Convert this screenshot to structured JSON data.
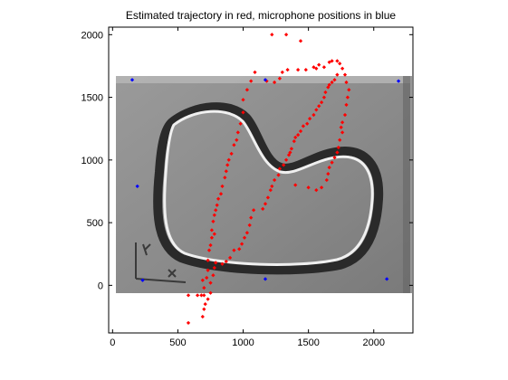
{
  "chart_data": {
    "type": "scatter",
    "title": "Estimated trajectory in red, microphone positions in blue",
    "xlabel": "",
    "ylabel": "",
    "xlim": [
      -30,
      2300
    ],
    "ylim": [
      2060,
      -380
    ],
    "y_reversed": true,
    "x_ticks": [
      0,
      500,
      1000,
      1500,
      2000
    ],
    "y_ticks": [
      0,
      500,
      1000,
      1500,
      2000
    ],
    "grid": false,
    "legend": "none",
    "colors": {
      "trajectory": "#ff0000",
      "microphones": "#0000ff"
    },
    "background_image": {
      "description": "grayscale photo of a track",
      "extent_x": [
        0,
        2300
      ],
      "extent_y": [
        40,
        1710
      ]
    },
    "series": [
      {
        "role": "trajectory",
        "color": "#ff0000",
        "points": [
          [
            580,
            -300
          ],
          [
            690,
            -250
          ],
          [
            700,
            -190
          ],
          [
            710,
            -150
          ],
          [
            730,
            -110
          ],
          [
            580,
            -80
          ],
          [
            650,
            -80
          ],
          [
            680,
            -80
          ],
          [
            700,
            -80
          ],
          [
            750,
            -60
          ],
          [
            700,
            -20
          ],
          [
            750,
            20
          ],
          [
            690,
            40
          ],
          [
            720,
            60
          ],
          [
            730,
            120
          ],
          [
            770,
            80
          ],
          [
            780,
            140
          ],
          [
            790,
            180
          ],
          [
            840,
            170
          ],
          [
            870,
            190
          ],
          [
            900,
            220
          ],
          [
            930,
            280
          ],
          [
            970,
            290
          ],
          [
            990,
            330
          ],
          [
            1010,
            380
          ],
          [
            1030,
            420
          ],
          [
            1050,
            480
          ],
          [
            1060,
            540
          ],
          [
            1080,
            600
          ],
          [
            1150,
            610
          ],
          [
            1170,
            650
          ],
          [
            1190,
            700
          ],
          [
            1210,
            760
          ],
          [
            1220,
            790
          ],
          [
            1240,
            840
          ],
          [
            1270,
            880
          ],
          [
            1280,
            930
          ],
          [
            1310,
            960
          ],
          [
            1330,
            1000
          ],
          [
            1350,
            1040
          ],
          [
            1360,
            1060
          ],
          [
            1370,
            1090
          ],
          [
            1390,
            1150
          ],
          [
            1400,
            1180
          ],
          [
            1420,
            1200
          ],
          [
            1440,
            1230
          ],
          [
            1460,
            1270
          ],
          [
            1490,
            1290
          ],
          [
            1510,
            1330
          ],
          [
            1540,
            1360
          ],
          [
            1560,
            1400
          ],
          [
            1580,
            1430
          ],
          [
            1600,
            1460
          ],
          [
            1620,
            1500
          ],
          [
            1630,
            1540
          ],
          [
            1650,
            1580
          ],
          [
            1660,
            1600
          ],
          [
            1680,
            1620
          ],
          [
            1700,
            1640
          ],
          [
            1720,
            1680
          ],
          [
            730,
            200
          ],
          [
            740,
            280
          ],
          [
            750,
            320
          ],
          [
            760,
            380
          ],
          [
            780,
            410
          ],
          [
            760,
            440
          ],
          [
            770,
            510
          ],
          [
            780,
            560
          ],
          [
            790,
            600
          ],
          [
            800,
            640
          ],
          [
            810,
            690
          ],
          [
            830,
            730
          ],
          [
            840,
            790
          ],
          [
            860,
            860
          ],
          [
            870,
            910
          ],
          [
            880,
            960
          ],
          [
            890,
            1000
          ],
          [
            910,
            1050
          ],
          [
            930,
            1120
          ],
          [
            950,
            1160
          ],
          [
            960,
            1220
          ],
          [
            980,
            1290
          ],
          [
            1000,
            1380
          ],
          [
            1000,
            1480
          ],
          [
            1030,
            1560
          ],
          [
            1060,
            1630
          ],
          [
            1090,
            1700
          ],
          [
            1180,
            1630
          ],
          [
            1240,
            1620
          ],
          [
            1280,
            1650
          ],
          [
            1300,
            1700
          ],
          [
            1340,
            1720
          ],
          [
            1420,
            1720
          ],
          [
            1480,
            1720
          ],
          [
            1540,
            1740
          ],
          [
            1560,
            1730
          ],
          [
            1580,
            1760
          ],
          [
            1620,
            1740
          ],
          [
            1660,
            1780
          ],
          [
            1680,
            1790
          ],
          [
            1720,
            1790
          ],
          [
            1740,
            1770
          ],
          [
            1760,
            1730
          ],
          [
            1780,
            1680
          ],
          [
            1790,
            1620
          ],
          [
            1810,
            1560
          ],
          [
            1800,
            1500
          ],
          [
            1790,
            1440
          ],
          [
            1780,
            1360
          ],
          [
            1760,
            1300
          ],
          [
            1750,
            1260
          ],
          [
            1760,
            1220
          ],
          [
            1740,
            1160
          ],
          [
            1730,
            1100
          ],
          [
            1720,
            1060
          ],
          [
            1700,
            1020
          ],
          [
            1680,
            980
          ],
          [
            1660,
            940
          ],
          [
            1650,
            890
          ],
          [
            1640,
            840
          ],
          [
            1600,
            780
          ],
          [
            1560,
            760
          ],
          [
            1500,
            780
          ],
          [
            1400,
            800
          ],
          [
            1220,
            2000
          ],
          [
            1330,
            2000
          ],
          [
            1440,
            1950
          ]
        ]
      },
      {
        "role": "microphones",
        "color": "#0000ff",
        "points": [
          [
            230,
            40
          ],
          [
            1170,
            50
          ],
          [
            2100,
            50
          ],
          [
            190,
            790
          ],
          [
            150,
            1640
          ],
          [
            1170,
            1640
          ],
          [
            2190,
            1630
          ]
        ]
      }
    ]
  }
}
